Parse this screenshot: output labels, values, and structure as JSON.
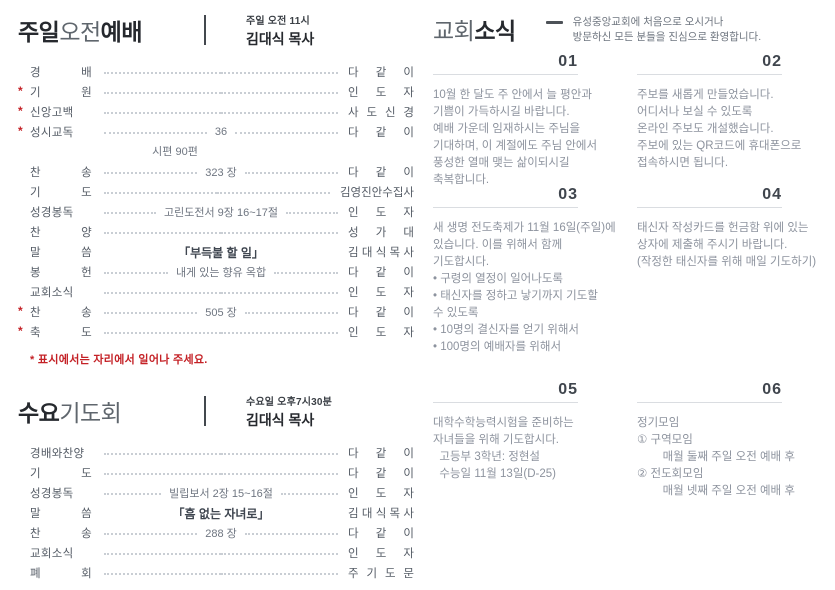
{
  "page": {
    "background": "#ffffff",
    "accent_red": "#c42126"
  },
  "sunday": {
    "title": {
      "part1": "주일",
      "part2": "오전",
      "part3": "예배"
    },
    "time": "주일 오전 11시",
    "preacher": "김대식 목사",
    "rows": [
      {
        "star": "",
        "label": "경 배",
        "center": "",
        "performer": "다 같 이"
      },
      {
        "star": "*",
        "label": "기 원",
        "center": "",
        "performer": "인 도 자"
      },
      {
        "star": "*",
        "label": "신앙고백",
        "center": "",
        "performer": "사 도 신 경"
      },
      {
        "star": "*",
        "label": "성시교독",
        "center": "36",
        "performer": "다 같 이"
      },
      {
        "star": "",
        "label": "찬 송",
        "center": "323 장",
        "performer": "다 같 이"
      },
      {
        "star": "",
        "label": "기 도",
        "center": "",
        "performer": "김영진안수집사"
      },
      {
        "star": "",
        "label": "성경봉독",
        "center": "고린도전서 9장 16~17절",
        "performer": "인 도 자"
      },
      {
        "star": "",
        "label": "찬 양",
        "center": "",
        "performer": "성 가 대"
      },
      {
        "star": "",
        "label": "말 씀",
        "center": "「부득불 할 일」",
        "performer": "김 대 식 목 사"
      },
      {
        "star": "",
        "label": "봉 헌",
        "center": "내게 있는 향유 옥합",
        "performer": "다 같 이"
      },
      {
        "star": "",
        "label": "교회소식",
        "center": "",
        "performer": "인 도 자"
      },
      {
        "star": "*",
        "label": "찬 송",
        "center": "505 장",
        "performer": "다 같 이"
      },
      {
        "star": "*",
        "label": "축 도",
        "center": "",
        "performer": "인 도 자"
      }
    ],
    "psalm_line": "시편 90편",
    "note": "* 표시에서는 자리에서 일어나 주세요."
  },
  "wednesday": {
    "title": {
      "part1": "수요",
      "part2": "기도회"
    },
    "time": "수요일 오후7시30분",
    "preacher": "김대식 목사",
    "rows": [
      {
        "star": "",
        "label": "경배와찬양",
        "center": "",
        "performer": "다 같 이"
      },
      {
        "star": "",
        "label": "기 도",
        "center": "",
        "performer": "다 같 이"
      },
      {
        "star": "",
        "label": "성경봉독",
        "center": "빌립보서 2장 15~16절",
        "performer": "인 도 자"
      },
      {
        "star": "",
        "label": "말 씀",
        "center": "「흠 없는 자녀로」",
        "performer": "김 대 식 목 사"
      },
      {
        "star": "",
        "label": "찬 송",
        "center": "288 장",
        "performer": "다 같 이"
      },
      {
        "star": "",
        "label": "교회소식",
        "center": "",
        "performer": "인 도 자"
      },
      {
        "star": "",
        "label": "폐 회",
        "center": "",
        "performer": "주 기 도 문"
      }
    ]
  },
  "news": {
    "title": {
      "part1": "교회",
      "part2": "소식"
    },
    "welcome": [
      "유성중앙교회에 처음으로 오시거나",
      "방문하신 모든 분들을 진심으로 환영합니다."
    ],
    "items": [
      {
        "number": "01",
        "body": [
          "10월 한 달도 주 안에서 늘 평안과",
          "기쁨이 가득하시길 바랍니다.",
          "예배 가운데 임재하시는 주님을",
          "기대하며, 이 계절에도 주님 안에서",
          "풍성한 열매 맺는 삶이되시길",
          "축복합니다."
        ]
      },
      {
        "number": "02",
        "body": [
          "주보를 새롭게 만들었습니다.",
          "어디서나 보실 수 있도록",
          "온라인 주보도 개설했습니다.",
          "주보에 있는 QR코드에 휴대폰으로",
          "접속하시면 됩니다."
        ]
      },
      {
        "number": "03",
        "body": [
          "새 생명 전도축제가 11월 16일(주일)에",
          "있습니다. 이를 위해서 함께",
          "기도합시다.",
          "• 구령의 열정이 일어나도록",
          "• 태신자를 정하고 낳기까지 기도할",
          "수 있도록",
          "• 10명의 결신자를 얻기 위해서",
          "• 100명의 예배자를 위해서"
        ]
      },
      {
        "number": "04",
        "body": [
          "태신자 작성카드를 헌금함 위에 있는",
          "상자에 제출해 주시기 바랍니다.",
          "(작정한 태신자를 위해 매일 기도하기)"
        ]
      },
      {
        "number": "05",
        "body": [
          "대학수학능력시험을 준비하는",
          "자녀들을 위해 기도합시다.",
          "  고등부 3학년: 정현설",
          "  수능일 11월 13일(D-25)"
        ]
      },
      {
        "number": "06",
        "body": [
          "정기모임",
          "① 구역모임",
          "        매월 둘째 주일 오전 예배 후",
          "② 전도회모임",
          "        매월 넷째 주일 오전 예배 후"
        ]
      }
    ]
  }
}
